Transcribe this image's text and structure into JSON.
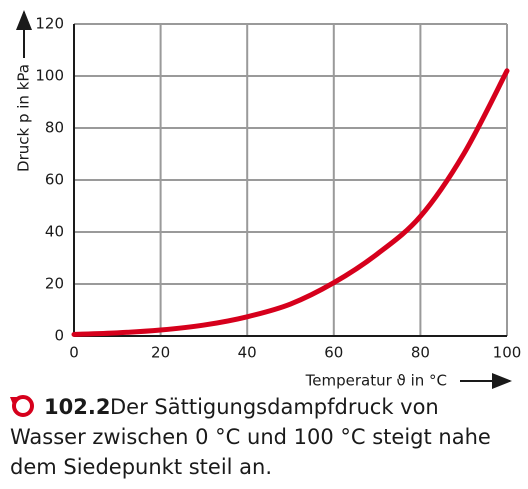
{
  "chart_data": {
    "type": "line",
    "x_label": "Temperatur ϑ in °C",
    "y_label": "Druck p in kPa",
    "x": [
      0,
      10,
      20,
      30,
      40,
      50,
      60,
      70,
      80,
      90,
      100
    ],
    "series": [
      {
        "color": "#d6001c",
        "values": [
          0.6,
          1.2,
          2.3,
          4.2,
          7.4,
          12.3,
          20.5,
          31.5,
          46,
          70,
          102
        ]
      }
    ],
    "xlim": [
      0,
      100
    ],
    "xticks": [
      0,
      20,
      40,
      60,
      80,
      100
    ],
    "ylim": [
      0,
      120
    ],
    "yticks": [
      0,
      20,
      40,
      60,
      80,
      100,
      120
    ],
    "grid": true,
    "caption_number": "102.2",
    "caption_lines": [
      "Der Sättigungsdampfdruck von",
      "Wasser zwischen 0 °C und 100 °C steigt nahe",
      "dem Siedepunkt steil an."
    ]
  }
}
